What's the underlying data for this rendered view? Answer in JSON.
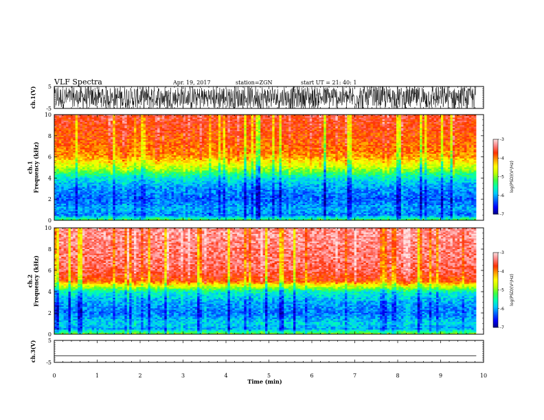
{
  "header": {
    "title": "VLF Spectra",
    "date": "Apr. 19, 2017",
    "station": "station=ZGN",
    "start": "start  UT =   21: 40: 1"
  },
  "colors": {
    "colormap": [
      "#00008b",
      "#0000ff",
      "#0060ff",
      "#00c8ff",
      "#00ffb0",
      "#40ff40",
      "#c0ff00",
      "#ffff00",
      "#ffa000",
      "#ff3000",
      "#ff8080",
      "#ffe0e0"
    ],
    "waveform": "#000000",
    "background": "#ffffff"
  },
  "chart_data": [
    {
      "type": "line",
      "panel": "ch1-waveform",
      "ylabel": "ch.1(V)",
      "ylim": [
        -5,
        5
      ],
      "yticks": [
        "5",
        "-5"
      ],
      "description_of_signal": "noise",
      "xlim": [
        0,
        10
      ]
    },
    {
      "type": "heatmap",
      "panel": "ch1-spectrogram",
      "ylabel": "ch.1\nFrequency (kHz)",
      "ylabel_lines": [
        "ch.1",
        "Frequency (kHz)"
      ],
      "ylim": [
        0,
        10
      ],
      "yticks": [
        "0",
        "2",
        "4",
        "6",
        "8",
        "10"
      ],
      "xlim": [
        0,
        9.83
      ],
      "band_profile_khz": [
        0,
        0.5,
        1,
        2,
        3,
        4,
        5,
        6,
        7,
        8,
        9,
        10
      ],
      "band_profile_logpsd": [
        -5.2,
        -6.2,
        -6.0,
        -6.3,
        -6.1,
        -5.7,
        -4.8,
        -4.1,
        -3.9,
        -3.8,
        -3.7,
        -3.6
      ],
      "colorbar": {
        "label": "log(PSD)(V²/Hz)",
        "range": [
          -7,
          -3
        ],
        "ticks": [
          "-3",
          "-4",
          "-5",
          "-6",
          "-7"
        ]
      }
    },
    {
      "type": "heatmap",
      "panel": "ch2-spectrogram",
      "ylabel": "ch.2\nFrequency (kHz)",
      "ylabel_lines": [
        "ch.2",
        "Frequency (kHz)"
      ],
      "ylim": [
        0,
        10
      ],
      "yticks": [
        "0",
        "2",
        "4",
        "6",
        "8",
        "10"
      ],
      "xlim": [
        0,
        9.83
      ],
      "band_profile_khz": [
        0,
        0.5,
        1,
        2,
        3,
        4,
        5,
        6,
        7,
        8,
        9,
        10
      ],
      "band_profile_logpsd": [
        -5.0,
        -6.0,
        -5.8,
        -6.2,
        -6.0,
        -5.6,
        -3.8,
        -3.5,
        -3.4,
        -3.4,
        -3.3,
        -3.3
      ],
      "colorbar": {
        "label": "log(PSD)(V²/Hz)",
        "range": [
          -7,
          -3
        ],
        "ticks": [
          "-3",
          "-4",
          "-5",
          "-6",
          "-7"
        ]
      }
    },
    {
      "type": "line",
      "panel": "ch3-waveform",
      "ylabel": "ch.3(V)",
      "ylim": [
        -5,
        5
      ],
      "yticks": [
        "5",
        "-5"
      ],
      "x": [
        0,
        9.83
      ],
      "values": [
        -2.0,
        -2.0
      ],
      "xlim": [
        0,
        10
      ]
    }
  ],
  "xaxis": {
    "label": "Time (min)",
    "range": [
      0,
      10
    ],
    "ticks": [
      "0",
      "1",
      "2",
      "3",
      "4",
      "5",
      "6",
      "7",
      "8",
      "9",
      "10"
    ]
  }
}
